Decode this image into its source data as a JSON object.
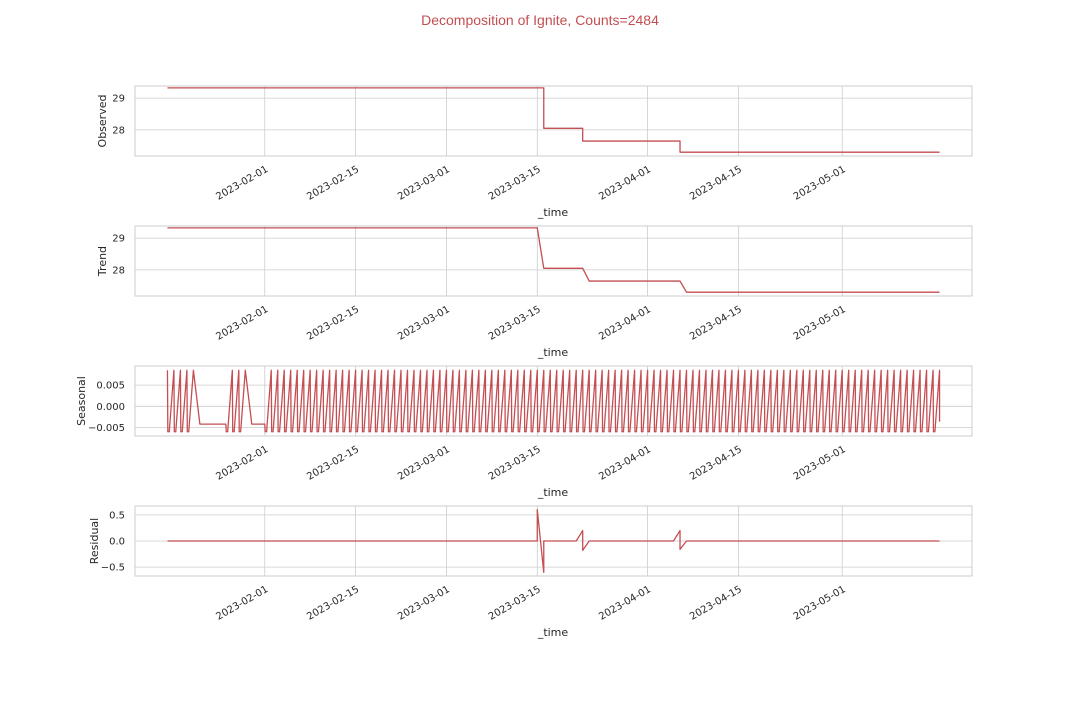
{
  "figure": {
    "title": "Decomposition of Ignite, Counts=2484",
    "title_color": "#c44e52",
    "line_color": "#c44e52",
    "grid_color": "#cccccc",
    "frame_color": "#cccccc"
  },
  "chart_data": [
    {
      "type": "line",
      "ylabel": "Observed",
      "xlabel": "_time",
      "xlim": [
        "2023-01-12",
        "2023-05-21"
      ],
      "ylim": [
        27.18,
        29.38
      ],
      "yticks": [
        {
          "v": 28,
          "label": "28"
        },
        {
          "v": 29,
          "label": "29"
        }
      ],
      "xticks": [
        "2023-02-01",
        "2023-02-15",
        "2023-03-01",
        "2023-03-15",
        "2023-04-01",
        "2023-04-15",
        "2023-05-01"
      ],
      "grid": true,
      "series": [
        {
          "kind": "step",
          "points": [
            [
              "2023-01-17",
              29.32
            ],
            [
              "2023-03-16",
              29.32
            ],
            [
              "2023-03-16",
              28.05
            ],
            [
              "2023-03-22",
              28.05
            ],
            [
              "2023-03-22",
              27.65
            ],
            [
              "2023-04-06",
              27.65
            ],
            [
              "2023-04-06",
              27.3
            ],
            [
              "2023-05-16",
              27.3
            ]
          ]
        }
      ]
    },
    {
      "type": "line",
      "ylabel": "Trend",
      "xlabel": "_time",
      "xlim": [
        "2023-01-12",
        "2023-05-21"
      ],
      "ylim": [
        27.18,
        29.38
      ],
      "yticks": [
        {
          "v": 28,
          "label": "28"
        },
        {
          "v": 29,
          "label": "29"
        }
      ],
      "xticks": [
        "2023-02-01",
        "2023-02-15",
        "2023-03-01",
        "2023-03-15",
        "2023-04-01",
        "2023-04-15",
        "2023-05-01"
      ],
      "grid": true,
      "series": [
        {
          "kind": "line",
          "points": [
            [
              "2023-01-17",
              29.32
            ],
            [
              "2023-03-15",
              29.32
            ],
            [
              "2023-03-16",
              28.05
            ],
            [
              "2023-03-22",
              28.05
            ],
            [
              "2023-03-23",
              27.65
            ],
            [
              "2023-04-06",
              27.65
            ],
            [
              "2023-04-07",
              27.3
            ],
            [
              "2023-05-16",
              27.3
            ]
          ]
        }
      ]
    },
    {
      "type": "line",
      "ylabel": "Seasonal",
      "xlabel": "_time",
      "xlim": [
        "2023-01-12",
        "2023-05-21"
      ],
      "ylim": [
        -0.007,
        0.0095
      ],
      "yticks": [
        {
          "v": -0.005,
          "label": "−0.005"
        },
        {
          "v": 0,
          "label": "0.000"
        },
        {
          "v": 0.005,
          "label": "0.005"
        }
      ],
      "xticks": [
        "2023-02-01",
        "2023-02-15",
        "2023-03-01",
        "2023-03-15",
        "2023-04-01",
        "2023-04-15",
        "2023-05-01"
      ],
      "grid": true,
      "series": [
        {
          "kind": "periodic",
          "start": "2023-01-17",
          "end": "2023-05-16",
          "period_days": 1,
          "min": -0.006,
          "max": 0.0085,
          "gaps": [
            [
              "2023-01-21",
              "2023-01-26"
            ],
            [
              "2023-01-29",
              "2023-02-01"
            ]
          ]
        }
      ]
    },
    {
      "type": "line",
      "ylabel": "Residual",
      "xlabel": "_time",
      "xlim": [
        "2023-01-12",
        "2023-05-21"
      ],
      "ylim": [
        -0.67,
        0.67
      ],
      "yticks": [
        {
          "v": -0.5,
          "label": "−0.5"
        },
        {
          "v": 0,
          "label": "0.0"
        },
        {
          "v": 0.5,
          "label": "0.5"
        }
      ],
      "xticks": [
        "2023-02-01",
        "2023-02-15",
        "2023-03-01",
        "2023-03-15",
        "2023-04-01",
        "2023-04-15",
        "2023-05-01"
      ],
      "grid": true,
      "series": [
        {
          "kind": "line",
          "points": [
            [
              "2023-01-17",
              0.0
            ],
            [
              "2023-03-15",
              0.0
            ],
            [
              "2023-03-15",
              0.6
            ],
            [
              "2023-03-16",
              -0.6
            ],
            [
              "2023-03-16",
              0.0
            ],
            [
              "2023-03-21",
              0.0
            ],
            [
              "2023-03-22",
              0.2
            ],
            [
              "2023-03-22",
              -0.18
            ],
            [
              "2023-03-23",
              0.0
            ],
            [
              "2023-04-05",
              0.0
            ],
            [
              "2023-04-06",
              0.2
            ],
            [
              "2023-04-06",
              -0.16
            ],
            [
              "2023-04-07",
              0.0
            ],
            [
              "2023-05-16",
              0.0
            ]
          ]
        }
      ]
    }
  ]
}
